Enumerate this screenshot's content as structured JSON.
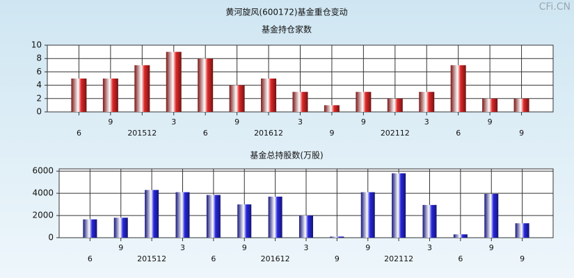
{
  "title": "黄河旋风(600172)基金重仓变动",
  "watermark": "CFi.CN",
  "chart_data": [
    {
      "type": "bar",
      "title": "基金持仓家数",
      "categories": [
        "6",
        "9",
        "201512",
        "3",
        "6",
        "9",
        "201612",
        "3",
        "9",
        "9",
        "202112",
        "3",
        "6",
        "9",
        "9"
      ],
      "values": [
        5,
        5,
        7,
        9,
        8,
        4,
        5,
        3,
        1,
        3,
        2,
        3,
        7,
        2,
        2
      ],
      "color": "#e02828",
      "ylim": [
        0,
        10
      ],
      "yticks": [
        0,
        2,
        4,
        6,
        8,
        10
      ],
      "grid": true
    },
    {
      "type": "bar",
      "title": "基金总持股数(万股)",
      "categories": [
        "6",
        "9",
        "201512",
        "3",
        "6",
        "9",
        "201612",
        "3",
        "9",
        "9",
        "202112",
        "3",
        "6",
        "9",
        "9"
      ],
      "values": [
        1650,
        1800,
        4300,
        4100,
        3850,
        3000,
        3700,
        2000,
        100,
        4100,
        5800,
        2950,
        300,
        3950,
        1300
      ],
      "color": "#2828e0",
      "ylim": [
        0,
        6200
      ],
      "yticks": [
        0,
        2000,
        4000,
        6000
      ],
      "grid": true
    }
  ]
}
